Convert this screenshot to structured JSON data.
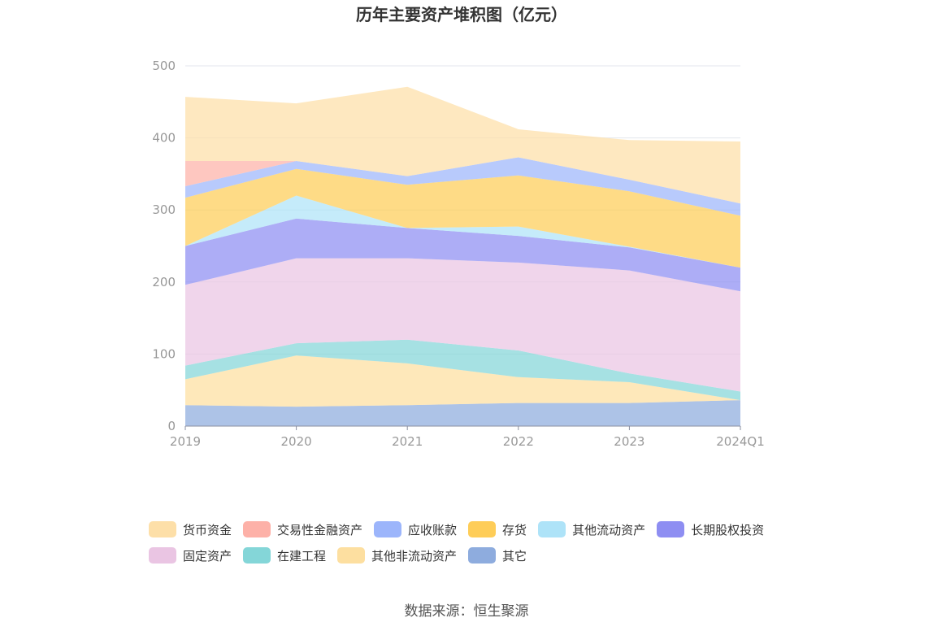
{
  "source_label": "数据来源：恒生聚源",
  "chart_data": {
    "type": "area",
    "stacked": true,
    "title": "历年主要资产堆积图（亿元）",
    "xlabel": "",
    "ylabel": "",
    "ylim": [
      0,
      500
    ],
    "yticks": [
      0,
      100,
      200,
      300,
      400,
      500
    ],
    "x": [
      "2019",
      "2020",
      "2021",
      "2022",
      "2023",
      "2024Q1"
    ],
    "grid": true,
    "legend_position": "bottom",
    "series": [
      {
        "name": "其它",
        "color": "#8EACDE",
        "values": [
          29,
          27,
          29,
          32,
          32,
          36
        ]
      },
      {
        "name": "其他非流动资产",
        "color": "#FDDFA0",
        "values": [
          36,
          71,
          58,
          36,
          29,
          0
        ]
      },
      {
        "name": "在建工程",
        "color": "#84D6D8",
        "values": [
          19,
          17,
          33,
          37,
          12,
          12
        ]
      },
      {
        "name": "固定资产",
        "color": "#EAC5E3",
        "values": [
          112,
          118,
          113,
          122,
          143,
          139
        ]
      },
      {
        "name": "长期股权投资",
        "color": "#8E8EF2",
        "values": [
          54,
          55,
          42,
          37,
          32,
          33
        ]
      },
      {
        "name": "其他流动资产",
        "color": "#AEE3F8",
        "values": [
          0,
          32,
          0,
          13,
          1,
          0
        ]
      },
      {
        "name": "存货",
        "color": "#FECD58",
        "values": [
          67,
          37,
          60,
          71,
          77,
          72
        ]
      },
      {
        "name": "应收账款",
        "color": "#9CB5FB",
        "values": [
          16,
          11,
          12,
          25,
          16,
          17
        ]
      },
      {
        "name": "交易性金融资产",
        "color": "#FDB1A8",
        "values": [
          35,
          0,
          0,
          0,
          0,
          0
        ]
      },
      {
        "name": "货币资金",
        "color": "#FDDFA8",
        "values": [
          89,
          80,
          124,
          39,
          55,
          86
        ]
      }
    ],
    "legend_order": [
      "货币资金",
      "交易性金融资产",
      "应收账款",
      "存货",
      "其他流动资产",
      "长期股权投资",
      "固定资产",
      "在建工程",
      "其他非流动资产",
      "其它"
    ]
  }
}
